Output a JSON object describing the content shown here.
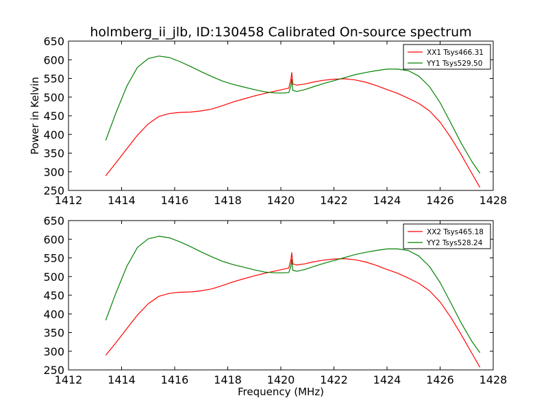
{
  "title": "holmberg_ii_jlb, ID:130458 Calibrated On-source spectrum",
  "colors": {
    "xx": "#ff0000",
    "yy": "#008000",
    "axes": "#000000",
    "background": "#ffffff"
  },
  "chart_data": [
    {
      "type": "line",
      "title": "holmberg_ii_jlb, ID:130458 Calibrated On-source spectrum",
      "xlabel": "",
      "ylabel": "Power in Kelvin",
      "xlim": [
        1412,
        1428
      ],
      "ylim": [
        250,
        650
      ],
      "xticks": [
        1412,
        1414,
        1416,
        1418,
        1420,
        1422,
        1424,
        1426,
        1428
      ],
      "yticks": [
        250,
        300,
        350,
        400,
        450,
        500,
        550,
        600,
        650
      ],
      "grid": false,
      "legend_position": "top-right",
      "series": [
        {
          "name": "XX1 Tsys466.31",
          "color": "#ff0000",
          "x": [
            1413.4,
            1413.8,
            1414.2,
            1414.6,
            1415.0,
            1415.4,
            1415.8,
            1416.2,
            1416.6,
            1417.0,
            1417.4,
            1417.8,
            1418.2,
            1418.6,
            1419.0,
            1419.4,
            1419.8,
            1420.1,
            1420.3,
            1420.38,
            1420.41,
            1420.45,
            1420.6,
            1420.9,
            1421.2,
            1421.6,
            1422.0,
            1422.4,
            1422.8,
            1423.2,
            1423.6,
            1424.0,
            1424.4,
            1424.8,
            1425.2,
            1425.6,
            1426.0,
            1426.4,
            1426.8,
            1427.2,
            1427.5
          ],
          "y": [
            289,
            325,
            362,
            398,
            428,
            448,
            456,
            459,
            460,
            463,
            468,
            477,
            487,
            495,
            503,
            510,
            516,
            521,
            524,
            548,
            566,
            535,
            532,
            535,
            540,
            545,
            548,
            549,
            546,
            540,
            531,
            520,
            510,
            497,
            483,
            463,
            433,
            392,
            345,
            295,
            258
          ]
        },
        {
          "name": "YY1 Tsys529.50",
          "color": "#008000",
          "x": [
            1413.4,
            1413.8,
            1414.2,
            1414.6,
            1415.0,
            1415.4,
            1415.8,
            1416.2,
            1416.6,
            1417.0,
            1417.4,
            1417.8,
            1418.2,
            1418.6,
            1419.0,
            1419.4,
            1419.8,
            1420.1,
            1420.3,
            1420.38,
            1420.41,
            1420.45,
            1420.6,
            1420.9,
            1421.2,
            1421.6,
            1422.0,
            1422.4,
            1422.8,
            1423.2,
            1423.6,
            1424.0,
            1424.4,
            1424.8,
            1425.2,
            1425.6,
            1426.0,
            1426.4,
            1426.8,
            1427.2,
            1427.5
          ],
          "y": [
            384,
            460,
            530,
            580,
            603,
            610,
            606,
            595,
            582,
            568,
            555,
            543,
            534,
            527,
            520,
            514,
            511,
            511,
            512,
            530,
            548,
            518,
            515,
            520,
            527,
            536,
            544,
            552,
            560,
            566,
            571,
            575,
            575,
            571,
            556,
            528,
            485,
            431,
            376,
            327,
            296
          ]
        }
      ]
    },
    {
      "type": "line",
      "title": "",
      "xlabel": "Frequency (MHz)",
      "ylabel": "",
      "xlim": [
        1412,
        1428
      ],
      "ylim": [
        250,
        650
      ],
      "xticks": [
        1412,
        1414,
        1416,
        1418,
        1420,
        1422,
        1424,
        1426,
        1428
      ],
      "yticks": [
        250,
        300,
        350,
        400,
        450,
        500,
        550,
        600,
        650
      ],
      "grid": false,
      "legend_position": "top-right",
      "series": [
        {
          "name": "XX2 Tsys465.18",
          "color": "#ff0000",
          "x": [
            1413.4,
            1413.8,
            1414.2,
            1414.6,
            1415.0,
            1415.4,
            1415.8,
            1416.2,
            1416.6,
            1417.0,
            1417.4,
            1417.8,
            1418.2,
            1418.6,
            1419.0,
            1419.4,
            1419.8,
            1420.1,
            1420.3,
            1420.38,
            1420.41,
            1420.45,
            1420.6,
            1420.9,
            1421.2,
            1421.6,
            1422.0,
            1422.4,
            1422.8,
            1423.2,
            1423.6,
            1424.0,
            1424.4,
            1424.8,
            1425.2,
            1425.6,
            1426.0,
            1426.4,
            1426.8,
            1427.2,
            1427.5
          ],
          "y": [
            289,
            324,
            361,
            397,
            427,
            447,
            455,
            458,
            459,
            462,
            467,
            476,
            486,
            494,
            502,
            509,
            515,
            520,
            523,
            546,
            564,
            534,
            531,
            534,
            539,
            544,
            547,
            548,
            545,
            539,
            530,
            519,
            509,
            496,
            482,
            462,
            432,
            391,
            344,
            294,
            257
          ]
        },
        {
          "name": "YY2 Tsys528.24",
          "color": "#008000",
          "x": [
            1413.4,
            1413.8,
            1414.2,
            1414.6,
            1415.0,
            1415.4,
            1415.8,
            1416.2,
            1416.6,
            1417.0,
            1417.4,
            1417.8,
            1418.2,
            1418.6,
            1419.0,
            1419.4,
            1419.8,
            1420.1,
            1420.3,
            1420.38,
            1420.41,
            1420.45,
            1420.6,
            1420.9,
            1421.2,
            1421.6,
            1422.0,
            1422.4,
            1422.8,
            1423.2,
            1423.6,
            1424.0,
            1424.4,
            1424.8,
            1425.2,
            1425.6,
            1426.0,
            1426.4,
            1426.8,
            1427.2,
            1427.5
          ],
          "y": [
            383,
            458,
            528,
            578,
            601,
            608,
            604,
            593,
            580,
            566,
            553,
            541,
            532,
            525,
            518,
            512,
            510,
            510,
            511,
            528,
            546,
            517,
            514,
            519,
            526,
            535,
            543,
            551,
            559,
            565,
            570,
            574,
            574,
            570,
            555,
            527,
            484,
            430,
            375,
            326,
            296
          ]
        }
      ]
    }
  ]
}
